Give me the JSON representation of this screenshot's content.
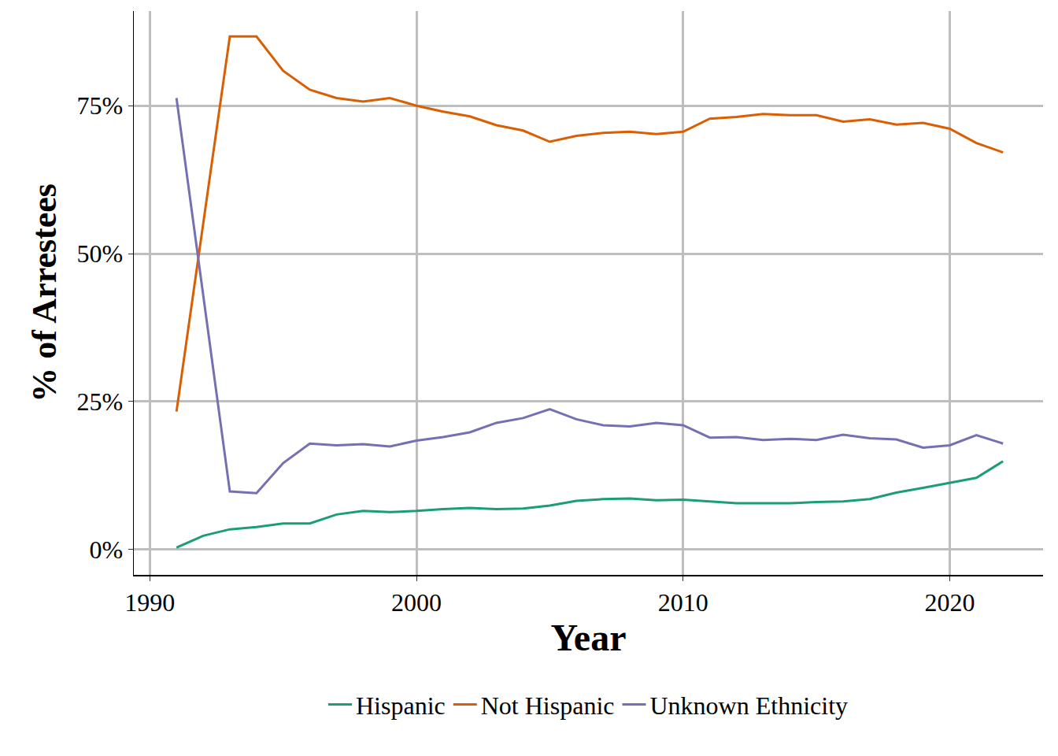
{
  "chart_data": {
    "type": "line",
    "x_label": "Year",
    "y_label": "% of Arrestees",
    "x": [
      1991,
      1992,
      1993,
      1994,
      1995,
      1996,
      1997,
      1998,
      1999,
      2000,
      2001,
      2002,
      2003,
      2004,
      2005,
      2006,
      2007,
      2008,
      2009,
      2010,
      2011,
      2012,
      2013,
      2014,
      2015,
      2016,
      2017,
      2018,
      2019,
      2020,
      2021,
      2022
    ],
    "series": [
      {
        "name": "Hispanic",
        "color": "#1b9e77",
        "values": [
          0.3,
          2.3,
          3.4,
          3.8,
          4.4,
          4.4,
          5.9,
          6.5,
          6.3,
          6.5,
          6.8,
          7.0,
          6.8,
          6.9,
          7.4,
          8.2,
          8.5,
          8.6,
          8.3,
          8.4,
          8.1,
          7.8,
          7.8,
          7.8,
          8.0,
          8.1,
          8.5,
          9.6,
          10.4,
          11.2,
          12.1,
          14.9
        ]
      },
      {
        "name": "Not Hispanic",
        "color": "#d95f02",
        "values": [
          23.3,
          55.0,
          86.7,
          86.7,
          80.9,
          77.7,
          76.3,
          75.7,
          76.3,
          75.0,
          74.0,
          73.2,
          71.7,
          70.8,
          68.9,
          69.9,
          70.4,
          70.6,
          70.2,
          70.6,
          72.8,
          73.1,
          73.6,
          73.4,
          73.4,
          72.3,
          72.7,
          71.8,
          72.1,
          71.1,
          68.7,
          67.1
        ]
      },
      {
        "name": "Unknown Ethnicity",
        "color": "#7570b3",
        "values": [
          76.3,
          43.0,
          9.8,
          9.5,
          14.6,
          17.9,
          17.6,
          17.8,
          17.4,
          18.4,
          19.0,
          19.8,
          21.4,
          22.2,
          23.7,
          22.0,
          21.0,
          20.8,
          21.4,
          21.0,
          18.9,
          19.0,
          18.5,
          18.7,
          18.5,
          19.4,
          18.8,
          18.6,
          17.2,
          17.6,
          19.3,
          17.9
        ]
      }
    ],
    "xlim": [
      1989.4,
      2023.5
    ],
    "xticks": [
      1990,
      2000,
      2010,
      2020
    ],
    "ylim": [
      -4.3,
      91
    ],
    "yticks": [
      {
        "value": 0,
        "label": "0%"
      },
      {
        "value": 25,
        "label": "25%"
      },
      {
        "value": 50,
        "label": "50%"
      },
      {
        "value": 75,
        "label": "75%"
      }
    ],
    "grid": true,
    "legend": "bottom"
  }
}
